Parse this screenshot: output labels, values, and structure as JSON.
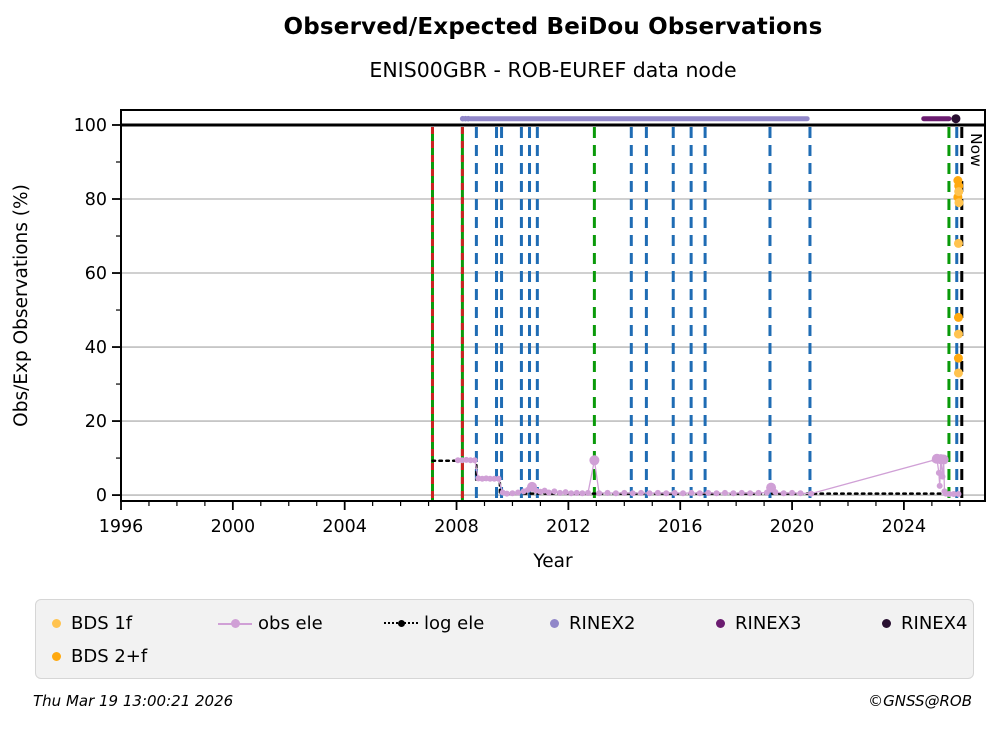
{
  "header": {
    "title": "Observed/Expected BeiDou Observations",
    "subtitle": "ENIS00GBR - ROB-EUREF data node"
  },
  "footer": {
    "timestamp": "Thu Mar 19 13:00:21 2026",
    "credit": "©GNSS@ROB"
  },
  "colors": {
    "grid": "#b3b3b3",
    "spine": "#000000",
    "reference_100": "#000000",
    "event_blue": "#1f6cb4",
    "event_green": "#0a9a0a",
    "event_red": "#cc2222",
    "now_black": "#000000",
    "rinex2": "#9187c9",
    "rinex3": "#6b1c70",
    "rinex4": "#291031",
    "obs_ele": "#d0a0d6",
    "log_ele": "#000000",
    "bds_1f": "#ffc34f",
    "bds_2f": "#ffa90f"
  },
  "legend": {
    "rows": [
      [
        {
          "id": "bds-1f",
          "label": "BDS 1f",
          "marker": "dot",
          "color": "#ffc34f"
        },
        {
          "id": "obs-ele",
          "label": "obs ele",
          "marker": "line-dot",
          "color": "#d0a0d6"
        },
        {
          "id": "log-ele",
          "label": "log ele",
          "marker": "dotted-dot",
          "color": "#000000"
        },
        {
          "id": "rinex2",
          "label": "RINEX2",
          "marker": "dot",
          "color": "#9187c9"
        },
        {
          "id": "rinex3",
          "label": "RINEX3",
          "marker": "dot",
          "color": "#6b1c70"
        },
        {
          "id": "rinex4",
          "label": "RINEX4",
          "marker": "dot",
          "color": "#291031"
        }
      ],
      [
        {
          "id": "bds-2f",
          "label": "BDS 2+f",
          "marker": "dot",
          "color": "#ffa90f"
        }
      ]
    ]
  },
  "chart_data": {
    "type": "line",
    "title": "Observed/Expected BeiDou Observations",
    "subtitle": "ENIS00GBR - ROB-EUREF data node",
    "xlabel": "Year",
    "ylabel": "Obs/Exp Observations (%)",
    "xlim": [
      1996,
      2026.9
    ],
    "ylim": [
      -1.6,
      104.05
    ],
    "xticks_major": [
      1996,
      2000,
      2004,
      2008,
      2012,
      2016,
      2020,
      2024
    ],
    "xticks_minor_step": 1,
    "yticks_major": [
      0,
      20,
      40,
      60,
      80,
      100
    ],
    "yticks_minor": [
      10,
      30,
      50,
      70,
      90
    ],
    "grid": "horizontal-gray",
    "reference_line_y": 100,
    "now_line": {
      "x": 2026.07,
      "label": "Now"
    },
    "event_lines": {
      "green_with_red_dashes": [
        2007.14,
        2008.21
      ],
      "green_dashed": [
        2012.93,
        2025.61
      ],
      "blue_dashed": [
        2008.71,
        2009.43,
        2009.61,
        2010.32,
        2010.61,
        2010.89,
        2014.25,
        2014.79,
        2015.75,
        2016.39,
        2016.89,
        2019.21,
        2020.64,
        2025.89
      ]
    },
    "series": [
      {
        "name": "RINEX2",
        "type": "thick-line",
        "color": "#9187c9",
        "y": 101.7,
        "x_start": 2008.5,
        "x_end": 2020.54,
        "lead_dots": [
          2008.22,
          2008.32,
          2008.42
        ]
      },
      {
        "name": "RINEX3",
        "type": "thick-line",
        "color": "#6b1c70",
        "y": 101.7,
        "x_start": 2024.71,
        "x_end": 2025.61,
        "lead_dots": []
      },
      {
        "name": "RINEX4",
        "type": "dots",
        "color": "#291031",
        "r": 4.5,
        "points": [
          [
            2025.86,
            101.7
          ]
        ]
      },
      {
        "name": "log ele",
        "type": "dotted-step",
        "color": "#000000",
        "points": [
          [
            2007.14,
            9.3
          ],
          [
            2008.71,
            9.3
          ],
          [
            2008.71,
            4.2
          ],
          [
            2009.55,
            4.2
          ],
          [
            2009.55,
            0.4
          ],
          [
            2026.0,
            0.4
          ]
        ]
      },
      {
        "name": "obs ele",
        "type": "line-markers",
        "color": "#d0a0d6",
        "points": [
          [
            2008.05,
            9.4
          ],
          [
            2008.2,
            9.4
          ],
          [
            2008.35,
            9.5
          ],
          [
            2008.5,
            9.4
          ],
          [
            2008.65,
            9.4
          ],
          [
            2008.78,
            4.5
          ],
          [
            2008.92,
            4.4
          ],
          [
            2009.06,
            4.5
          ],
          [
            2009.2,
            4.4
          ],
          [
            2009.35,
            4.4
          ],
          [
            2009.5,
            4.4
          ],
          [
            2009.65,
            0.7
          ],
          [
            2009.8,
            0.4
          ],
          [
            2010.0,
            0.5
          ],
          [
            2010.2,
            0.7
          ],
          [
            2010.4,
            1.0
          ],
          [
            2010.55,
            1.4
          ],
          [
            2010.7,
            2.2
          ],
          [
            2010.85,
            1.2
          ],
          [
            2011.0,
            0.9
          ],
          [
            2011.15,
            1.2
          ],
          [
            2011.3,
            0.7
          ],
          [
            2011.5,
            1.0
          ],
          [
            2011.7,
            0.6
          ],
          [
            2011.9,
            0.8
          ],
          [
            2012.1,
            0.5
          ],
          [
            2012.3,
            0.6
          ],
          [
            2012.5,
            0.5
          ],
          [
            2012.7,
            0.6
          ],
          [
            2012.93,
            9.4
          ],
          [
            2013.1,
            0.5
          ],
          [
            2013.4,
            0.6
          ],
          [
            2013.7,
            0.5
          ],
          [
            2014.0,
            0.6
          ],
          [
            2014.3,
            0.5
          ],
          [
            2014.6,
            0.6
          ],
          [
            2014.9,
            0.5
          ],
          [
            2015.2,
            0.6
          ],
          [
            2015.5,
            0.5
          ],
          [
            2015.8,
            0.6
          ],
          [
            2016.1,
            0.5
          ],
          [
            2016.4,
            0.6
          ],
          [
            2016.7,
            0.5
          ],
          [
            2017.0,
            0.6
          ],
          [
            2017.3,
            0.5
          ],
          [
            2017.6,
            0.6
          ],
          [
            2017.9,
            0.5
          ],
          [
            2018.2,
            0.6
          ],
          [
            2018.5,
            0.5
          ],
          [
            2018.8,
            0.6
          ],
          [
            2019.1,
            0.7
          ],
          [
            2019.25,
            2.0
          ],
          [
            2019.4,
            0.8
          ],
          [
            2019.7,
            0.5
          ],
          [
            2020.0,
            0.6
          ],
          [
            2020.3,
            0.5
          ],
          [
            2020.68,
            0.4
          ],
          [
            2025.1,
            9.5
          ],
          [
            2025.18,
            9.8
          ],
          [
            2025.25,
            6.0
          ],
          [
            2025.28,
            2.5
          ],
          [
            2025.32,
            9.7
          ],
          [
            2025.38,
            5.0
          ],
          [
            2025.42,
            9.6
          ],
          [
            2025.45,
            1.0
          ],
          [
            2025.5,
            0.4
          ],
          [
            2025.62,
            0.3
          ],
          [
            2025.78,
            0.3
          ],
          [
            2025.95,
            0.3
          ]
        ],
        "big_markers": [
          [
            2010.7,
            2.2
          ],
          [
            2012.93,
            9.4
          ],
          [
            2019.25,
            2.0
          ],
          [
            2025.18,
            9.8
          ],
          [
            2025.32,
            9.7
          ],
          [
            2025.42,
            9.6
          ]
        ]
      },
      {
        "name": "BDS 2+f",
        "type": "dots",
        "color": "#ffa90f",
        "r": 4.5,
        "points": [
          [
            2025.93,
            85
          ],
          [
            2025.96,
            83.5
          ],
          [
            2025.93,
            80.5
          ],
          [
            2025.95,
            48
          ],
          [
            2025.95,
            37
          ]
        ]
      },
      {
        "name": "BDS 1f",
        "type": "dots",
        "color": "#ffc34f",
        "r": 4.5,
        "points": [
          [
            2025.96,
            82
          ],
          [
            2025.97,
            79
          ],
          [
            2025.95,
            68
          ],
          [
            2025.95,
            43.5
          ],
          [
            2025.95,
            33
          ]
        ]
      }
    ]
  }
}
